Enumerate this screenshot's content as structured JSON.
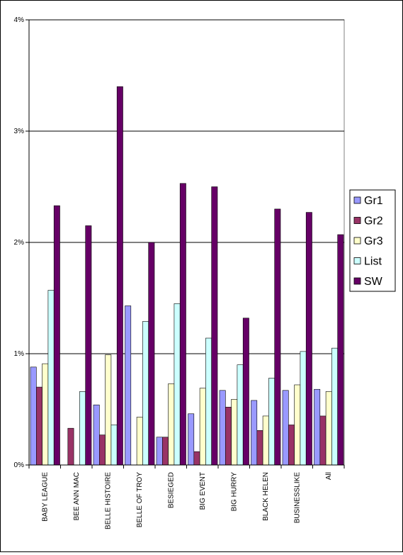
{
  "chart_data": {
    "type": "bar",
    "categories": [
      "BABY LEAGUE",
      "BEE ANN MAC",
      "BELLE HISTOIRE",
      "BELLE OF TROY",
      "BESIEGED",
      "BIG EVENT",
      "BIG HURRY",
      "BLACK HELEN",
      "BUSINESSLIKE",
      "All"
    ],
    "series": [
      {
        "name": "Gr1",
        "color": "#9999FF",
        "values": [
          0.88,
          0.0,
          0.54,
          1.43,
          0.25,
          0.46,
          0.67,
          0.58,
          0.67,
          0.68
        ]
      },
      {
        "name": "Gr2",
        "color": "#993366",
        "values": [
          0.7,
          0.33,
          0.27,
          0.0,
          0.25,
          0.12,
          0.52,
          0.31,
          0.36,
          0.44
        ]
      },
      {
        "name": "Gr3",
        "color": "#FFFFCC",
        "values": [
          0.91,
          0.0,
          0.99,
          0.43,
          0.73,
          0.69,
          0.59,
          0.44,
          0.72,
          0.66
        ]
      },
      {
        "name": "List",
        "color": "#CCFFFF",
        "values": [
          1.57,
          0.66,
          0.36,
          1.29,
          1.45,
          1.14,
          0.9,
          0.78,
          1.02,
          1.05
        ]
      },
      {
        "name": "SW",
        "color": "#660066",
        "values": [
          2.33,
          2.15,
          3.4,
          2.0,
          2.53,
          2.5,
          1.32,
          2.3,
          2.27,
          2.07
        ]
      }
    ],
    "y_ticks": [
      "0%",
      "1%",
      "2%",
      "3%",
      "4%"
    ],
    "ylim": [
      0,
      4
    ],
    "y_unit": "%",
    "gridlines": true,
    "legend_position": "right"
  }
}
